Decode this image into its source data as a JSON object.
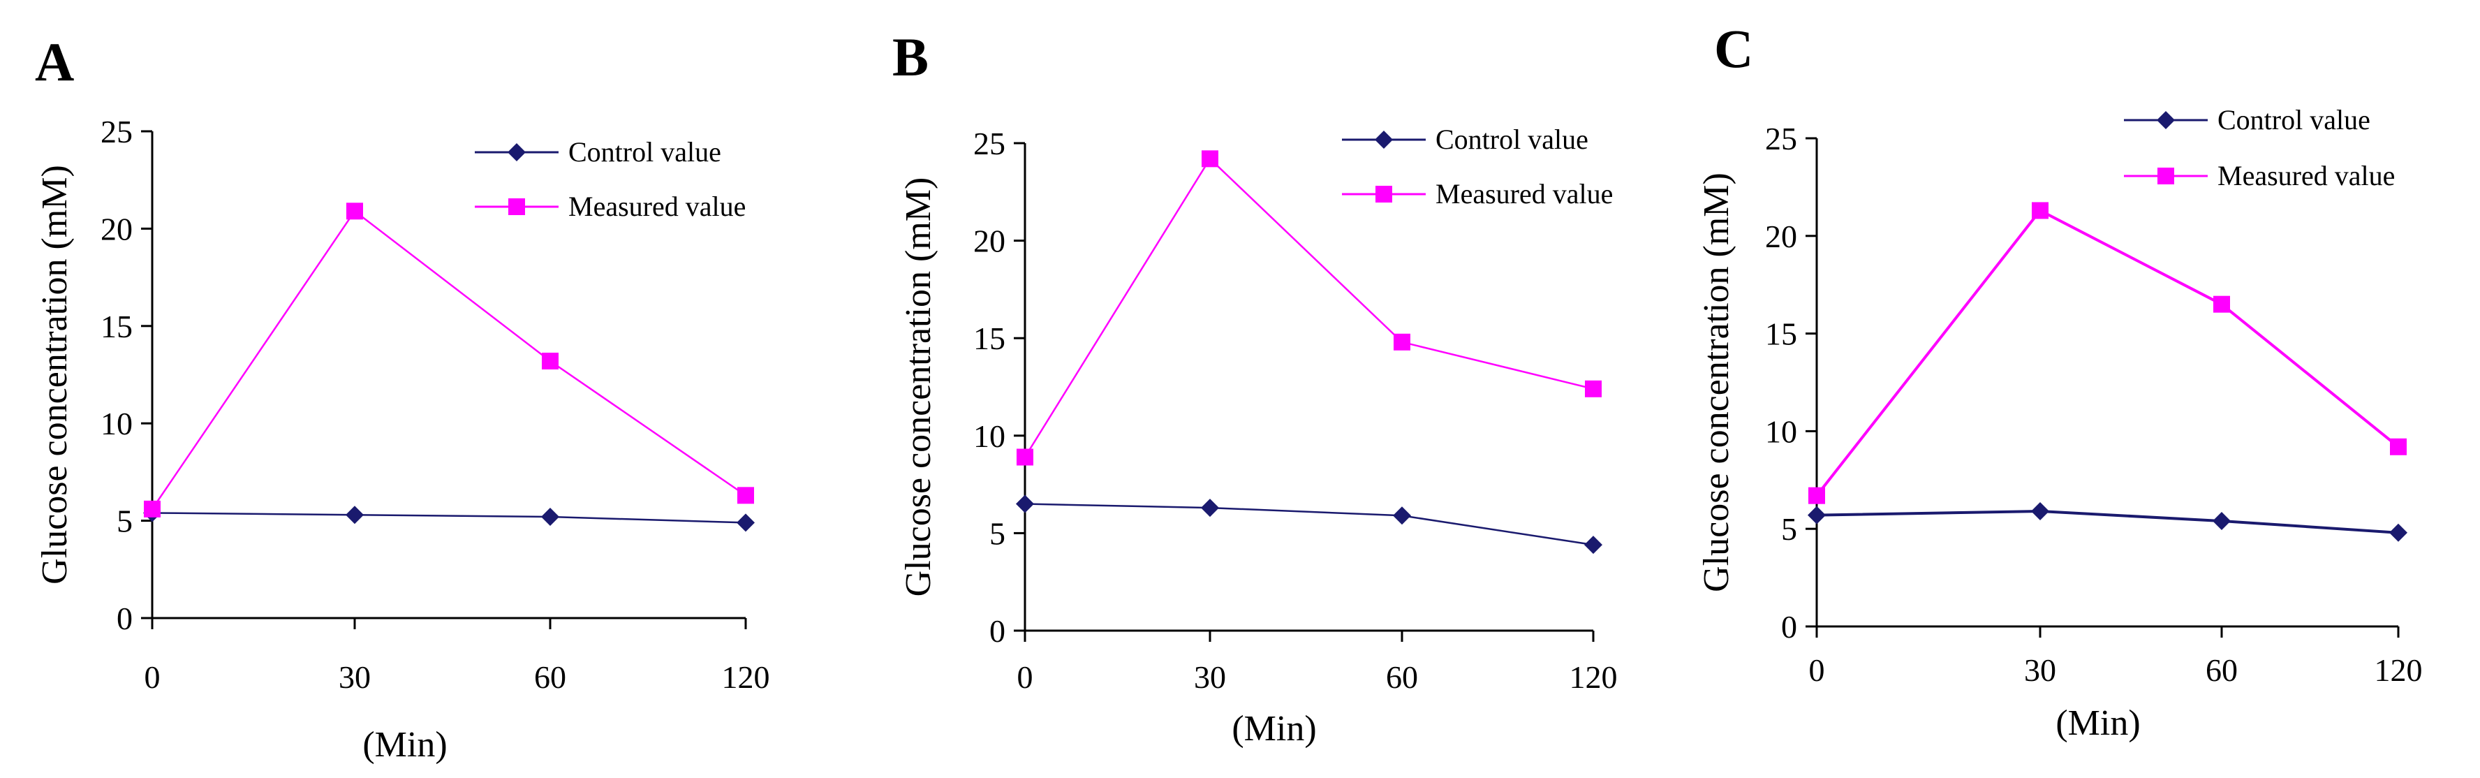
{
  "chart_data": [
    {
      "type": "line",
      "panel": "A",
      "ylabel": "Glucose concentration (mM)",
      "xlabel": "(Min)",
      "x_ticks": [
        "0",
        "30",
        "60",
        "120"
      ],
      "y_ticks": [
        "0",
        "5",
        "10",
        "15",
        "20",
        "25"
      ],
      "ylim": [
        0,
        25
      ],
      "legend": [
        "Control value",
        "Measured value"
      ],
      "series": [
        {
          "name": "Control value",
          "color": "#1a1a6e",
          "marker": "diamond",
          "x": [
            0,
            30,
            60,
            120
          ],
          "values": [
            5.4,
            5.3,
            5.2,
            4.9
          ]
        },
        {
          "name": "Measured value",
          "color": "#ff00ff",
          "marker": "square",
          "x": [
            0,
            30,
            60,
            120
          ],
          "values": [
            5.6,
            20.9,
            13.2,
            6.3
          ]
        }
      ]
    },
    {
      "type": "line",
      "panel": "B",
      "ylabel": "Glucose concentration (mM)",
      "xlabel": "(Min)",
      "x_ticks": [
        "0",
        "30",
        "60",
        "120"
      ],
      "y_ticks": [
        "0",
        "5",
        "10",
        "15",
        "20",
        "25"
      ],
      "ylim": [
        0,
        25
      ],
      "legend": [
        "Control value",
        "Measured value"
      ],
      "series": [
        {
          "name": "Control value",
          "color": "#1a1a6e",
          "marker": "diamond",
          "x": [
            0,
            30,
            60,
            120
          ],
          "values": [
            6.5,
            6.3,
            5.9,
            4.4
          ]
        },
        {
          "name": "Measured value",
          "color": "#ff00ff",
          "marker": "square",
          "x": [
            0,
            30,
            60,
            120
          ],
          "values": [
            8.9,
            24.2,
            14.8,
            12.4
          ]
        }
      ]
    },
    {
      "type": "line",
      "panel": "C",
      "ylabel": "Glucose concentration (mM)",
      "xlabel": "(Min)",
      "x_ticks": [
        "0",
        "30",
        "60",
        "120"
      ],
      "y_ticks": [
        "0",
        "5",
        "10",
        "15",
        "20",
        "25"
      ],
      "ylim": [
        0,
        25
      ],
      "legend": [
        "Control value",
        "Measured value"
      ],
      "series": [
        {
          "name": "Control value",
          "color": "#1a1a6e",
          "marker": "diamond",
          "x": [
            0,
            30,
            60,
            120
          ],
          "values": [
            5.7,
            5.9,
            5.4,
            4.8
          ]
        },
        {
          "name": "Measured value",
          "color": "#ff00ff",
          "marker": "square",
          "x": [
            0,
            30,
            60,
            120
          ],
          "values": [
            6.7,
            21.3,
            16.5,
            9.2
          ]
        }
      ]
    }
  ]
}
